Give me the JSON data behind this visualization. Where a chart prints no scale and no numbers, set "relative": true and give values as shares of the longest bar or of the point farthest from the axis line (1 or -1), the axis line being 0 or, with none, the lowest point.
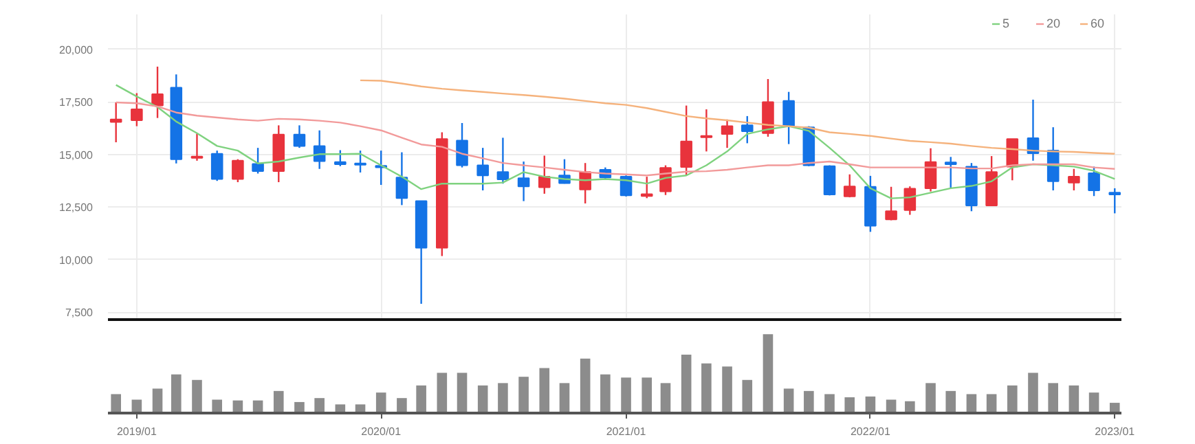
{
  "chart_data": [
    {
      "type": "candlestick",
      "x": [
        "2018-12",
        "2019-01",
        "2019-02",
        "2019-03",
        "2019-04",
        "2019-05",
        "2019-06",
        "2019-07",
        "2019-08",
        "2019-09",
        "2019-10",
        "2019-11",
        "2019-12",
        "2020-01",
        "2020-02",
        "2020-03",
        "2020-04",
        "2020-05",
        "2020-06",
        "2020-07",
        "2020-08",
        "2020-09",
        "2020-10",
        "2020-11",
        "2020-12",
        "2021-01",
        "2021-02",
        "2021-03",
        "2021-04",
        "2021-05",
        "2021-06",
        "2021-07",
        "2021-08",
        "2021-09",
        "2021-10",
        "2021-11",
        "2021-12",
        "2022-01",
        "2022-02",
        "2022-03",
        "2022-04",
        "2022-05",
        "2022-06",
        "2022-07",
        "2022-08",
        "2022-09",
        "2022-10",
        "2022-11",
        "2022-12",
        "2023-01"
      ],
      "ohlc": [
        [
          16535,
          17470,
          15575,
          16665
        ],
        [
          16620,
          17910,
          16340,
          17140
        ],
        [
          17320,
          19170,
          16730,
          17860
        ],
        [
          18170,
          18800,
          14570,
          14770
        ],
        [
          14830,
          15990,
          14700,
          14900
        ],
        [
          15030,
          15180,
          13740,
          13830
        ],
        [
          13830,
          14770,
          13680,
          14700
        ],
        [
          14550,
          15310,
          14090,
          14200
        ],
        [
          14200,
          16380,
          13680,
          15945
        ],
        [
          15945,
          16380,
          15310,
          15400
        ],
        [
          15400,
          16140,
          14310,
          14680
        ],
        [
          14640,
          15200,
          14440,
          14530
        ],
        [
          14570,
          15180,
          14140,
          14510
        ],
        [
          14460,
          15180,
          13550,
          14380
        ],
        [
          13900,
          15100,
          12590,
          12920
        ],
        [
          12780,
          12800,
          7900,
          10560
        ],
        [
          10560,
          16050,
          10170,
          15730
        ],
        [
          15660,
          16490,
          14380,
          14480
        ],
        [
          14480,
          15310,
          13290,
          14000
        ],
        [
          14160,
          15790,
          13610,
          13810
        ],
        [
          13870,
          14660,
          12780,
          13480
        ],
        [
          13440,
          14940,
          13130,
          13940
        ],
        [
          14000,
          14770,
          13610,
          13630
        ],
        [
          13330,
          14590,
          12670,
          14160
        ],
        [
          14270,
          14380,
          13790,
          13900
        ],
        [
          13940,
          14000,
          13000,
          13050
        ],
        [
          13020,
          13940,
          12920,
          13110
        ],
        [
          13240,
          14480,
          13070,
          14360
        ],
        [
          14400,
          17320,
          14000,
          15620
        ],
        [
          15810,
          17140,
          15140,
          15880
        ],
        [
          15970,
          16660,
          15310,
          16340
        ],
        [
          16380,
          16820,
          15530,
          16100
        ],
        [
          16010,
          18580,
          15840,
          17490
        ],
        [
          17540,
          17970,
          15490,
          16340
        ],
        [
          16290,
          16340,
          14440,
          14480
        ],
        [
          14440,
          14480,
          13050,
          13090
        ],
        [
          13000,
          14050,
          12960,
          13480
        ],
        [
          13460,
          13980,
          11320,
          11610
        ],
        [
          11910,
          13460,
          11870,
          12300
        ],
        [
          12350,
          13480,
          12130,
          13370
        ],
        [
          13390,
          15290,
          13240,
          14640
        ],
        [
          14620,
          14880,
          13390,
          14530
        ],
        [
          14420,
          14590,
          12300,
          12570
        ],
        [
          12570,
          14920,
          12570,
          14160
        ],
        [
          14420,
          15730,
          13770,
          15730
        ],
        [
          15770,
          17600,
          14700,
          15050
        ],
        [
          15180,
          16290,
          13290,
          13720
        ],
        [
          13660,
          14310,
          13290,
          13940
        ],
        [
          14110,
          14420,
          13020,
          13290
        ],
        [
          13180,
          13390,
          12200,
          13090
        ]
      ],
      "colors": [
        "#e8333c",
        "#e8333c",
        "#e8333c",
        "#1473e6",
        "#e8333c",
        "#1473e6",
        "#e8333c",
        "#1473e6",
        "#e8333c",
        "#1473e6",
        "#1473e6",
        "#1473e6",
        "#1473e6",
        "#1473e6",
        "#1473e6",
        "#1473e6",
        "#e8333c",
        "#1473e6",
        "#1473e6",
        "#1473e6",
        "#1473e6",
        "#e8333c",
        "#1473e6",
        "#e8333c",
        "#1473e6",
        "#1473e6",
        "#e8333c",
        "#e8333c",
        "#e8333c",
        "#e8333c",
        "#e8333c",
        "#1473e6",
        "#e8333c",
        "#1473e6",
        "#1473e6",
        "#1473e6",
        "#e8333c",
        "#1473e6",
        "#e8333c",
        "#e8333c",
        "#e8333c",
        "#1473e6",
        "#1473e6",
        "#e8333c",
        "#e8333c",
        "#1473e6",
        "#1473e6",
        "#e8333c",
        "#1473e6",
        "#1473e6"
      ],
      "series": [
        {
          "type": "line",
          "name": "5",
          "color": "#7fd27f",
          "values": [
            18300,
            17750,
            17250,
            16560,
            16010,
            15400,
            15180,
            14570,
            14660,
            14850,
            15010,
            15010,
            15030,
            14480,
            13940,
            13350,
            13610,
            13610,
            13610,
            13660,
            14160,
            13940,
            13830,
            13770,
            13830,
            13770,
            13610,
            13880,
            14000,
            14480,
            15140,
            15970,
            16190,
            16340,
            16120,
            15310,
            14480,
            13390,
            12910,
            12960,
            13180,
            13390,
            13500,
            13720,
            14380,
            14530,
            14480,
            14420,
            14220,
            13830
          ]
        },
        {
          "type": "line",
          "name": "20",
          "color": "#f29a9a",
          "values": [
            17470,
            17430,
            17280,
            16990,
            16840,
            16750,
            16660,
            16600,
            16690,
            16660,
            16600,
            16510,
            16340,
            16140,
            15790,
            15470,
            15360,
            15030,
            14810,
            14590,
            14480,
            14380,
            14270,
            14160,
            14090,
            14050,
            14000,
            14090,
            14180,
            14200,
            14270,
            14380,
            14480,
            14480,
            14590,
            14660,
            14530,
            14380,
            14380,
            14380,
            14380,
            14380,
            14330,
            14330,
            14480,
            14530,
            14530,
            14530,
            14380,
            14310
          ]
        },
        {
          "type": "line",
          "name": "60",
          "color": "#f5b27c",
          "values": [
            null,
            null,
            null,
            null,
            null,
            null,
            null,
            null,
            null,
            null,
            null,
            null,
            18520,
            18500,
            18370,
            18230,
            18120,
            18040,
            17970,
            17890,
            17820,
            17740,
            17650,
            17540,
            17430,
            17350,
            17200,
            17020,
            16820,
            16710,
            16620,
            16510,
            16400,
            16340,
            16270,
            16050,
            15970,
            15880,
            15750,
            15640,
            15580,
            15510,
            15400,
            15310,
            15250,
            15180,
            15140,
            15120,
            15070,
            15030
          ]
        }
      ],
      "xlim": [
        "2018-11-19",
        "2023-01-11"
      ],
      "xticks": [
        {
          "value": "2019-01",
          "label": null
        },
        {
          "value": "2020-01",
          "label": null
        },
        {
          "value": "2021-01",
          "label": null
        },
        {
          "value": "2022-01",
          "label": null
        },
        {
          "value": "2023-01",
          "label": null
        }
      ],
      "ylim": [
        7150,
        21650
      ],
      "yticks": [
        {
          "value": 7500,
          "label": "7,500"
        },
        {
          "value": 10000,
          "label": "10,000"
        },
        {
          "value": 12500,
          "label": "12,500"
        },
        {
          "value": 15000,
          "label": "15,000"
        },
        {
          "value": 17500,
          "label": "17,500"
        },
        {
          "value": 20000,
          "label": "20,000"
        }
      ],
      "tick_labels": "y",
      "grid": true,
      "legend": "top right"
    },
    {
      "type": "bar",
      "relative": true,
      "color": "#8c8c8c",
      "x": [
        "2018-12",
        "2019-01",
        "2019-02",
        "2019-03",
        "2019-04",
        "2019-05",
        "2019-06",
        "2019-07",
        "2019-08",
        "2019-09",
        "2019-10",
        "2019-11",
        "2019-12",
        "2020-01",
        "2020-02",
        "2020-03",
        "2020-04",
        "2020-05",
        "2020-06",
        "2020-07",
        "2020-08",
        "2020-09",
        "2020-10",
        "2020-11",
        "2020-12",
        "2021-01",
        "2021-02",
        "2021-03",
        "2021-04",
        "2021-05",
        "2021-06",
        "2021-07",
        "2021-08",
        "2021-09",
        "2021-10",
        "2021-11",
        "2021-12",
        "2022-01",
        "2022-02",
        "2022-03",
        "2022-04",
        "2022-05",
        "2022-06",
        "2022-07",
        "2022-08",
        "2022-09",
        "2022-10",
        "2022-11",
        "2022-12",
        "2023-01"
      ],
      "values": [
        0.24,
        0.17,
        0.31,
        0.49,
        0.42,
        0.17,
        0.16,
        0.16,
        0.28,
        0.14,
        0.19,
        0.11,
        0.11,
        0.26,
        0.19,
        0.35,
        0.51,
        0.51,
        0.35,
        0.38,
        0.46,
        0.57,
        0.38,
        0.69,
        0.49,
        0.45,
        0.45,
        0.38,
        0.74,
        0.63,
        0.59,
        0.42,
        1,
        0.31,
        0.28,
        0.24,
        0.2,
        0.21,
        0.17,
        0.15,
        0.38,
        0.28,
        0.24,
        0.24,
        0.35,
        0.51,
        0.38,
        0.35,
        0.26,
        0.13
      ],
      "xlim": [
        "2018-11-19",
        "2023-01-11"
      ],
      "xticks": [
        {
          "value": "2019-01",
          "label": "2019/01"
        },
        {
          "value": "2020-01",
          "label": "2020/01"
        },
        {
          "value": "2021-01",
          "label": "2021/01"
        },
        {
          "value": "2022-01",
          "label": "2022/01"
        },
        {
          "value": "2023-01",
          "label": "2023/01"
        }
      ],
      "tick_labels": "x"
    }
  ]
}
